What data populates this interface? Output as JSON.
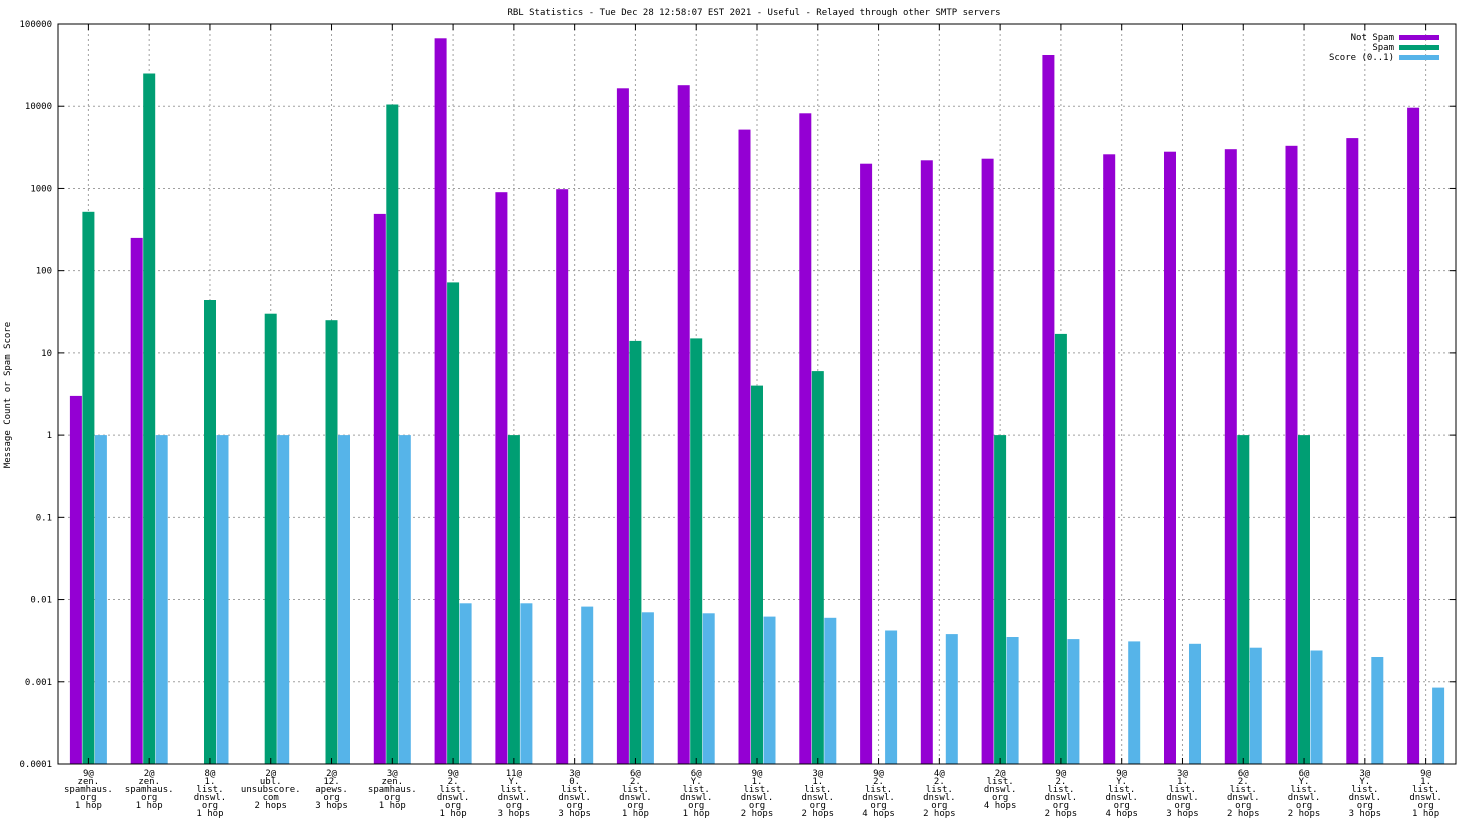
{
  "chart_data": {
    "type": "bar",
    "title": "RBL Statistics - Tue Dec 28 12:58:07 EST 2021 - Useful - Relayed through other SMTP servers",
    "xlabel": "",
    "ylabel": "Message Count or Spam Score",
    "y_scale": "log",
    "ylim": [
      0.0001,
      100000
    ],
    "y_ticks": [
      "0.0001",
      "0.001",
      "0.01",
      "0.1",
      "1",
      "10",
      "100",
      "1000",
      "10000",
      "100000"
    ],
    "grid": true,
    "legend_position": "top-right",
    "categories": [
      [
        "9@",
        "zen.",
        "spamhaus.",
        "org",
        "1 hop"
      ],
      [
        "2@",
        "zen.",
        "spamhaus.",
        "org",
        "1 hop"
      ],
      [
        "8@",
        "1.",
        "list.",
        "dnswl.",
        "org",
        "1 hop"
      ],
      [
        "2@",
        "ubl.",
        "unsubscore.",
        "com",
        "2 hops"
      ],
      [
        "2@",
        "12.",
        "apews.",
        "org",
        "3 hops"
      ],
      [
        "3@",
        "zen.",
        "spamhaus.",
        "org",
        "1 hop"
      ],
      [
        "9@",
        "2.",
        "list.",
        "dnswl.",
        "org",
        "1 hop"
      ],
      [
        "11@",
        "Y.",
        "list.",
        "dnswl.",
        "org",
        "3 hops"
      ],
      [
        "3@",
        "0.",
        "list.",
        "dnswl.",
        "org",
        "3 hops"
      ],
      [
        "6@",
        "2.",
        "list.",
        "dnswl.",
        "org",
        "1 hop"
      ],
      [
        "6@",
        "Y.",
        "list.",
        "dnswl.",
        "org",
        "1 hop"
      ],
      [
        "9@",
        "1.",
        "list.",
        "dnswl.",
        "org",
        "2 hops"
      ],
      [
        "3@",
        "1.",
        "list.",
        "dnswl.",
        "org",
        "2 hops"
      ],
      [
        "9@",
        "2.",
        "list.",
        "dnswl.",
        "org",
        "4 hops"
      ],
      [
        "4@",
        "2.",
        "list.",
        "dnswl.",
        "org",
        "2 hops"
      ],
      [
        "2@",
        "list.",
        "dnswl.",
        "org",
        "4 hops"
      ],
      [
        "9@",
        "2.",
        "list.",
        "dnswl.",
        "org",
        "2 hops"
      ],
      [
        "9@",
        "Y.",
        "list.",
        "dnswl.",
        "org",
        "4 hops"
      ],
      [
        "3@",
        "1.",
        "list.",
        "dnswl.",
        "org",
        "3 hops"
      ],
      [
        "6@",
        "2.",
        "list.",
        "dnswl.",
        "org",
        "2 hops"
      ],
      [
        "6@",
        "Y.",
        "list.",
        "dnswl.",
        "org",
        "2 hops"
      ],
      [
        "3@",
        "Y.",
        "list.",
        "dnswl.",
        "org",
        "3 hops"
      ],
      [
        "9@",
        "1.",
        "list.",
        "dnswl.",
        "org",
        "1 hop"
      ]
    ],
    "series": [
      {
        "name": "Not Spam",
        "color": "#9400d3",
        "values": [
          3,
          250,
          null,
          null,
          null,
          490,
          67000,
          900,
          980,
          16500,
          18000,
          5200,
          8200,
          2000,
          2200,
          2300,
          42000,
          2600,
          2800,
          3000,
          3300,
          4100,
          9600
        ]
      },
      {
        "name": "Spam",
        "color": "#009e73",
        "values": [
          520,
          25000,
          44,
          30,
          25,
          10500,
          72,
          1,
          null,
          14,
          15,
          4,
          6,
          null,
          null,
          1,
          17,
          null,
          null,
          1,
          1,
          null,
          null
        ]
      },
      {
        "name": "Score (0..1)",
        "color": "#56b4e9",
        "values": [
          1,
          1,
          1,
          1,
          1,
          1,
          0.009,
          0.009,
          0.0082,
          0.007,
          0.0068,
          0.0062,
          0.006,
          0.0042,
          0.0038,
          0.0035,
          0.0033,
          0.0031,
          0.0029,
          0.0026,
          0.0024,
          0.002,
          0.00085
        ]
      }
    ]
  }
}
